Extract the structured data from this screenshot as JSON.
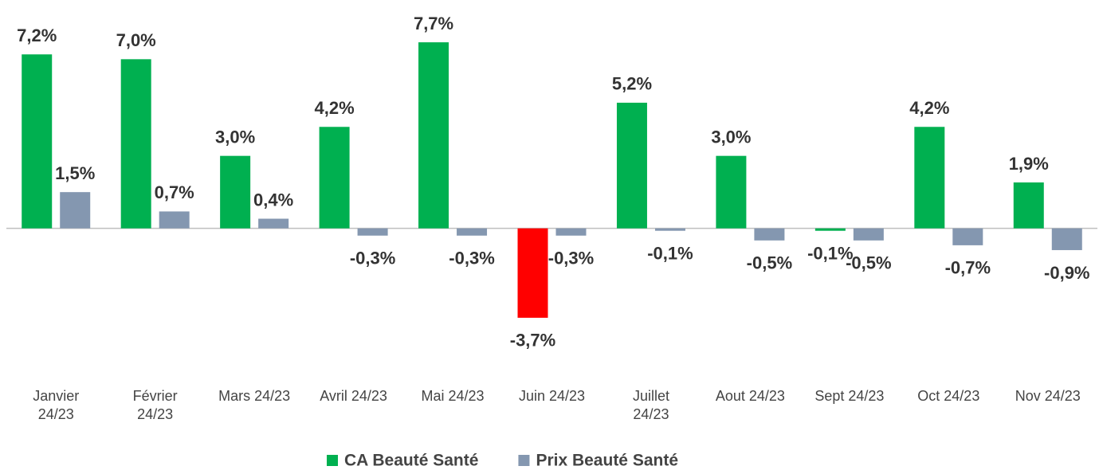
{
  "chart_data": {
    "type": "bar",
    "categories": [
      "Janvier 24/23",
      "Février 24/23",
      "Mars 24/23",
      "Avril 24/23",
      "Mai 24/23",
      "Juin 24/23",
      "Juillet 24/23",
      "Aout 24/23",
      "Sept 24/23",
      "Oct 24/23",
      "Nov 24/23"
    ],
    "series": [
      {
        "name": "CA Beauté Santé",
        "color": "#00b050",
        "colors": [
          "#00b050",
          "#00b050",
          "#00b050",
          "#00b050",
          "#00b050",
          "#ff0000",
          "#00b050",
          "#00b050",
          "#00b050",
          "#00b050",
          "#00b050"
        ],
        "values": [
          7.2,
          7.0,
          3.0,
          4.2,
          7.7,
          -3.7,
          5.2,
          3.0,
          -0.1,
          4.2,
          1.9
        ],
        "value_labels": [
          "7,2%",
          "7,0%",
          "3,0%",
          "4,2%",
          "7,7%",
          "-3,7%",
          "5,2%",
          "3,0%",
          "-0,1%",
          "4,2%",
          "1,9%"
        ]
      },
      {
        "name": "Prix Beauté Santé",
        "color": "#8497b0",
        "values": [
          1.5,
          0.7,
          0.4,
          -0.3,
          -0.3,
          -0.3,
          -0.1,
          -0.5,
          -0.5,
          -0.7,
          -0.9
        ],
        "value_labels": [
          "1,5%",
          "0,7%",
          "0,4%",
          "-0,3%",
          "-0,3%",
          "-0,3%",
          "-0,1%",
          "-0,5%",
          "-0,5%",
          "-0,7%",
          "-0,9%"
        ]
      }
    ],
    "ylim": [
      -4,
      8
    ],
    "legend": "bottom"
  }
}
